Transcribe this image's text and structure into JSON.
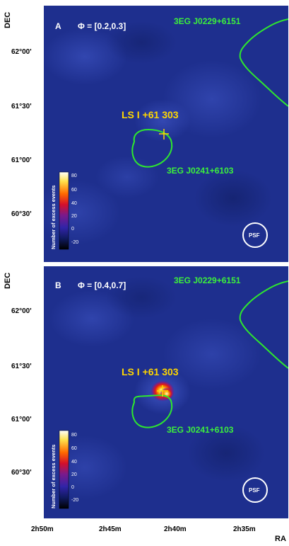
{
  "figure": {
    "axis": {
      "ylabel": "DEC",
      "xlabel": "RA",
      "dec_ticks": [
        "62°00'",
        "61°30'",
        "61°00'",
        "60°30'"
      ],
      "ra_ticks": [
        "2h50m",
        "2h45m",
        "2h40m",
        "2h35m"
      ]
    },
    "panels": [
      {
        "letter": "A",
        "phase": "Φ = [0.2,0.3]",
        "source_main": "LS I +61 303",
        "source_north": "3EG J0229+6151",
        "source_south": "3EG J0241+6103",
        "colorbar": {
          "title": "Number of excess events",
          "ticks": [
            "80",
            "60",
            "40",
            "20",
            "0",
            "-20"
          ]
        },
        "psf": "PSF",
        "excess_peak": "none"
      },
      {
        "letter": "B",
        "phase": "Φ = [0.4,0.7]",
        "source_main": "LS I +61 303",
        "source_north": "3EG J0229+6151",
        "source_south": "3EG J0241+6103",
        "colorbar": {
          "title": "Number of excess events",
          "ticks": [
            "80",
            "60",
            "40",
            "20",
            "0",
            "-20"
          ]
        },
        "psf": "PSF",
        "excess_peak": "bright"
      }
    ],
    "colors": {
      "sky_background": "#1e2f8e",
      "contour": "#2ee82e",
      "source_label": "#ffd700",
      "label_green": "#3cf03c"
    }
  }
}
